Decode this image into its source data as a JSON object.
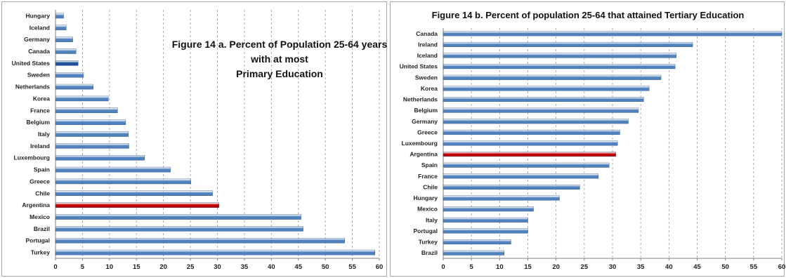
{
  "chart_data": [
    {
      "type": "bar",
      "orientation": "horizontal",
      "title": "Figure 14 a. Percent of Population 25-64 years with at most Primary Education",
      "title_lines": [
        "Figure 14 a. Percent of Population 25-64 years",
        "with at most",
        "Primary Education"
      ],
      "categories": [
        "Hungary",
        "Iceland",
        "Germany",
        "Canada",
        "United States",
        "Sweden",
        "Netherlands",
        "Korea",
        "France",
        "Belgium",
        "Italy",
        "Ireland",
        "Luxembourg",
        "Spain",
        "Greece",
        "Chile",
        "Argentina",
        "Mexico",
        "Brazil",
        "Portugal",
        "Turkey"
      ],
      "values": [
        1.5,
        2.0,
        3.2,
        3.8,
        4.2,
        5.2,
        7.0,
        9.8,
        11.5,
        13.0,
        13.5,
        13.6,
        16.5,
        21.3,
        25.1,
        29.1,
        30.3,
        45.5,
        45.9,
        53.6,
        59.2
      ],
      "highlight": {
        "Argentina": "#c00000",
        "United States": "#1f4e9a"
      },
      "bar_color": "#4f81bd",
      "xlim": [
        0,
        60
      ],
      "xticks": [
        "0",
        "5",
        "10",
        "15",
        "20",
        "25",
        "30",
        "35",
        "40",
        "45",
        "50",
        "55",
        "60"
      ],
      "grid": true
    },
    {
      "type": "bar",
      "orientation": "horizontal",
      "title": "Figure 14 b. Percent of population 25-64 that attained Tertiary Education",
      "categories": [
        "Canada",
        "Ireland",
        "Iceland",
        "United States",
        "Sweden",
        "Korea",
        "Netherlands",
        "Belgium",
        "Germany",
        "Greece",
        "Luxembourg",
        "Argentina",
        "Spain",
        "France",
        "Chile",
        "Hungary",
        "Mexico",
        "Italy",
        "Portugal",
        "Turkey",
        "Brazil"
      ],
      "values": [
        60.0,
        44.2,
        41.3,
        41.1,
        38.6,
        36.5,
        35.5,
        34.6,
        32.8,
        31.3,
        30.9,
        30.6,
        29.4,
        27.5,
        24.2,
        20.6,
        16.0,
        15.0,
        15.0,
        12.0,
        10.8
      ],
      "highlight": {
        "Argentina": "#c00000"
      },
      "bar_color": "#4f81bd",
      "xlim": [
        0,
        60
      ],
      "xticks": [
        "0",
        "5",
        "10",
        "15",
        "20",
        "25",
        "30",
        "35",
        "40",
        "45",
        "50",
        "55",
        "60"
      ],
      "grid": true
    }
  ]
}
